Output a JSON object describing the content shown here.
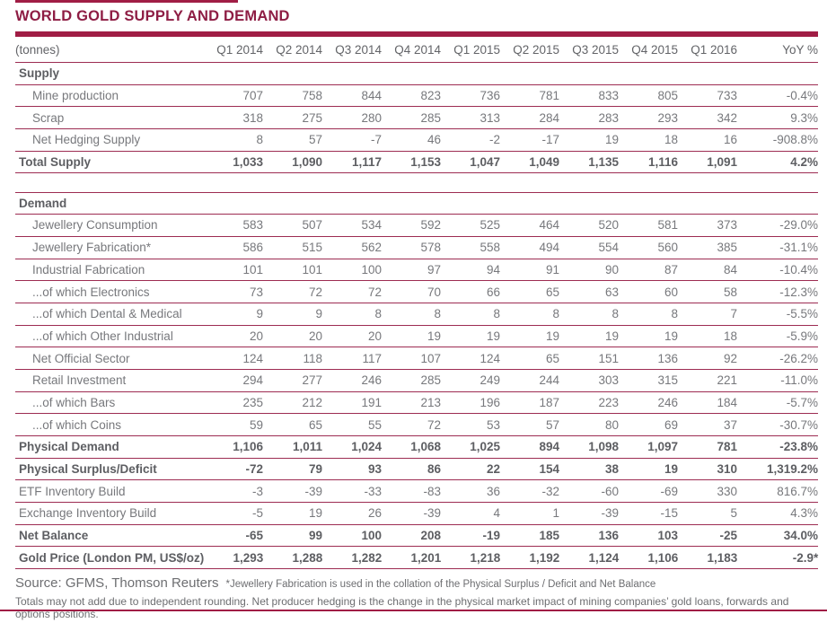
{
  "title": "WORLD GOLD SUPPLY AND DEMAND",
  "colors": {
    "accent_maroon": "#a01d45",
    "title_maroon": "#8e1d44",
    "rule_line": "#9d2c52",
    "text_gray": "#77787c",
    "bold_gray": "#5d5e62"
  },
  "table": {
    "unit_label": "(tonnes)",
    "columns": [
      "Q1 2014",
      "Q2 2014",
      "Q3 2014",
      "Q4 2014",
      "Q1 2015",
      "Q2 2015",
      "Q3 2015",
      "Q4 2015",
      "Q1 2016",
      "YoY %"
    ],
    "rows": [
      {
        "type": "section",
        "label": "Supply",
        "values": []
      },
      {
        "type": "indented",
        "label": "Mine production",
        "values": [
          "707",
          "758",
          "844",
          "823",
          "736",
          "781",
          "833",
          "805",
          "733",
          "-0.4%"
        ]
      },
      {
        "type": "indented",
        "label": "Scrap",
        "values": [
          "318",
          "275",
          "280",
          "285",
          "313",
          "284",
          "283",
          "293",
          "342",
          "9.3%"
        ]
      },
      {
        "type": "indented",
        "label": "Net Hedging Supply",
        "values": [
          "8",
          "57",
          "-7",
          "46",
          "-2",
          "-17",
          "19",
          "18",
          "16",
          "-908.8%"
        ]
      },
      {
        "type": "total",
        "label": "Total Supply",
        "values": [
          "1,033",
          "1,090",
          "1,117",
          "1,153",
          "1,047",
          "1,049",
          "1,135",
          "1,116",
          "1,091",
          "4.2%"
        ]
      },
      {
        "type": "spacer"
      },
      {
        "type": "section",
        "label": "Demand",
        "values": []
      },
      {
        "type": "indented",
        "label": "Jewellery Consumption",
        "values": [
          "583",
          "507",
          "534",
          "592",
          "525",
          "464",
          "520",
          "581",
          "373",
          "-29.0%"
        ]
      },
      {
        "type": "indented",
        "label": "Jewellery Fabrication*",
        "values": [
          "586",
          "515",
          "562",
          "578",
          "558",
          "494",
          "554",
          "560",
          "385",
          "-31.1%"
        ]
      },
      {
        "type": "indented",
        "label": "Industrial Fabrication",
        "values": [
          "101",
          "101",
          "100",
          "97",
          "94",
          "91",
          "90",
          "87",
          "84",
          "-10.4%"
        ]
      },
      {
        "type": "indented",
        "label": "...of which Electronics",
        "values": [
          "73",
          "72",
          "72",
          "70",
          "66",
          "65",
          "63",
          "60",
          "58",
          "-12.3%"
        ]
      },
      {
        "type": "indented",
        "label": "...of which Dental & Medical",
        "values": [
          "9",
          "9",
          "8",
          "8",
          "8",
          "8",
          "8",
          "8",
          "7",
          "-5.5%"
        ]
      },
      {
        "type": "indented",
        "label": "...of which Other Industrial",
        "values": [
          "20",
          "20",
          "20",
          "19",
          "19",
          "19",
          "19",
          "19",
          "18",
          "-5.9%"
        ]
      },
      {
        "type": "indented",
        "label": "Net Official Sector",
        "values": [
          "124",
          "118",
          "117",
          "107",
          "124",
          "65",
          "151",
          "136",
          "92",
          "-26.2%"
        ]
      },
      {
        "type": "indented",
        "label": "Retail Investment",
        "values": [
          "294",
          "277",
          "246",
          "285",
          "249",
          "244",
          "303",
          "315",
          "221",
          "-11.0%"
        ]
      },
      {
        "type": "indented",
        "label": "...of which Bars",
        "values": [
          "235",
          "212",
          "191",
          "213",
          "196",
          "187",
          "223",
          "246",
          "184",
          "-5.7%"
        ]
      },
      {
        "type": "indented",
        "label": "...of which Coins",
        "values": [
          "59",
          "65",
          "55",
          "72",
          "53",
          "57",
          "80",
          "69",
          "37",
          "-30.7%"
        ]
      },
      {
        "type": "total",
        "label": "Physical Demand",
        "values": [
          "1,106",
          "1,011",
          "1,024",
          "1,068",
          "1,025",
          "894",
          "1,098",
          "1,097",
          "781",
          "-23.8%"
        ]
      },
      {
        "type": "total",
        "label": "Physical Surplus/Deficit",
        "values": [
          "-72",
          "79",
          "93",
          "86",
          "22",
          "154",
          "38",
          "19",
          "310",
          "1,319.2%"
        ]
      },
      {
        "type": "flush",
        "label": "ETF Inventory Build",
        "values": [
          "-3",
          "-39",
          "-33",
          "-83",
          "36",
          "-32",
          "-60",
          "-69",
          "330",
          "816.7%"
        ]
      },
      {
        "type": "flush",
        "label": "Exchange Inventory Build",
        "values": [
          "-5",
          "19",
          "26",
          "-39",
          "4",
          "1",
          "-39",
          "-15",
          "5",
          "4.3%"
        ]
      },
      {
        "type": "total",
        "label": "Net Balance",
        "values": [
          "-65",
          "99",
          "100",
          "208",
          "-19",
          "185",
          "136",
          "103",
          "-25",
          "34.0%"
        ]
      },
      {
        "type": "total",
        "label": "Gold Price (London PM, US$/oz)",
        "values": [
          "1,293",
          "1,288",
          "1,282",
          "1,201",
          "1,218",
          "1,192",
          "1,124",
          "1,106",
          "1,183",
          "-2.9*"
        ]
      }
    ]
  },
  "footer": {
    "source": "Source: GFMS, Thomson Reuters",
    "footnote": "*Jewellery Fabrication is used in the collation of the Physical Surplus / Deficit and Net Balance",
    "note": "Totals may not add due to independent rounding.  Net producer hedging is the change in the physical market impact of mining companies’ gold loans, forwards and options positions."
  }
}
